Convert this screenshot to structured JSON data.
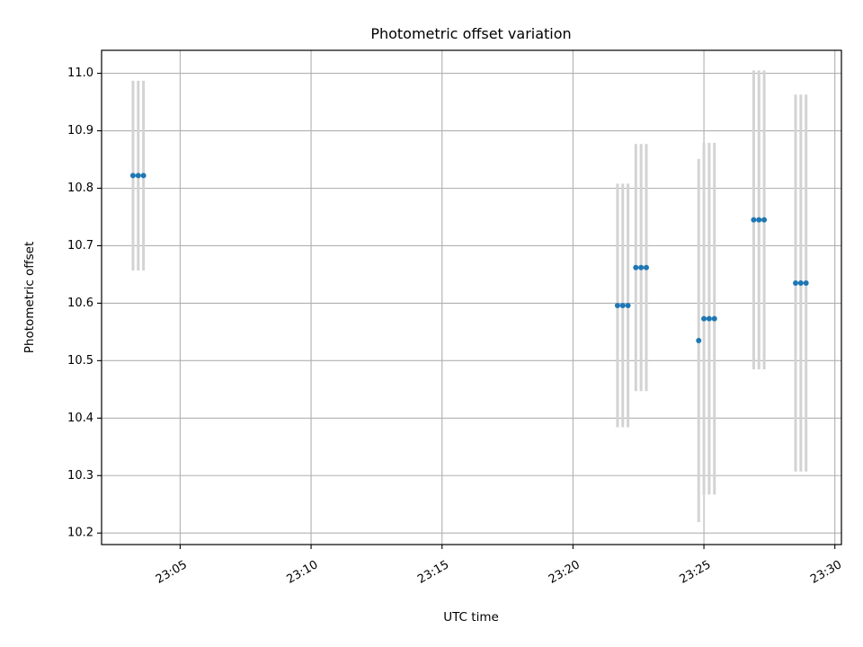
{
  "chart_data": {
    "type": "scatter",
    "title": "Photometric offset variation",
    "xlabel": "UTC time",
    "ylabel": "Photometric offset",
    "x_format": "HH:MM",
    "xlim": [
      "23:02:00",
      "23:30:15"
    ],
    "ylim": [
      10.18,
      11.04
    ],
    "x_ticks": [
      "23:05",
      "23:10",
      "23:15",
      "23:20",
      "23:25",
      "23:30"
    ],
    "y_ticks": [
      "10.2",
      "10.3",
      "10.4",
      "10.5",
      "10.6",
      "10.7",
      "10.8",
      "10.9",
      "11.0"
    ],
    "grid": true,
    "legend": "none",
    "marker_color": "#1f77b4",
    "errorbar_color": "#d3d3d3",
    "series": [
      {
        "points": [
          {
            "x": "23:03:12",
            "y": 10.822,
            "err": 0.165
          },
          {
            "x": "23:03:24",
            "y": 10.822,
            "err": 0.165
          },
          {
            "x": "23:03:36",
            "y": 10.822,
            "err": 0.165
          },
          {
            "x": "23:21:42",
            "y": 10.596,
            "err": 0.212
          },
          {
            "x": "23:21:54",
            "y": 10.596,
            "err": 0.212
          },
          {
            "x": "23:22:06",
            "y": 10.596,
            "err": 0.212
          },
          {
            "x": "23:22:24",
            "y": 10.662,
            "err": 0.215
          },
          {
            "x": "23:22:36",
            "y": 10.662,
            "err": 0.215
          },
          {
            "x": "23:22:48",
            "y": 10.662,
            "err": 0.215
          },
          {
            "x": "23:24:48",
            "y": 10.535,
            "err": 0.316
          },
          {
            "x": "23:25:00",
            "y": 10.573,
            "err": 0.306
          },
          {
            "x": "23:25:12",
            "y": 10.573,
            "err": 0.306
          },
          {
            "x": "23:25:24",
            "y": 10.573,
            "err": 0.306
          },
          {
            "x": "23:26:54",
            "y": 10.745,
            "err": 0.26
          },
          {
            "x": "23:27:06",
            "y": 10.745,
            "err": 0.26
          },
          {
            "x": "23:27:18",
            "y": 10.745,
            "err": 0.26
          },
          {
            "x": "23:28:30",
            "y": 10.635,
            "err": 0.328
          },
          {
            "x": "23:28:42",
            "y": 10.635,
            "err": 0.328
          },
          {
            "x": "23:28:54",
            "y": 10.635,
            "err": 0.328
          }
        ]
      }
    ]
  }
}
